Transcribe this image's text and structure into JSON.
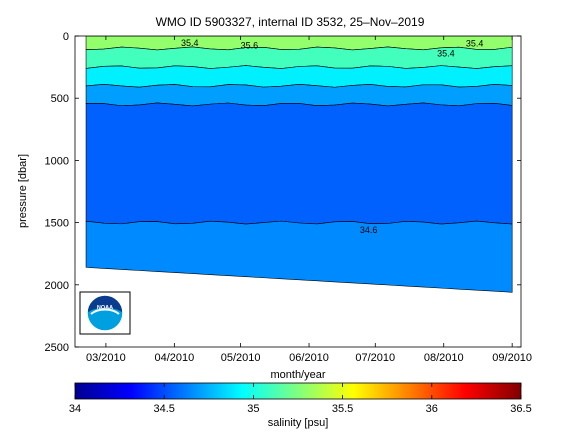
{
  "chart_data": {
    "type": "heatmap",
    "title": "WMO ID 5903327, internal ID 3532, 25–Nov–2019",
    "xlabel": "month/year",
    "ylabel": "pressure [dbar]",
    "x_ticks": [
      "03/2010",
      "04/2010",
      "05/2010",
      "06/2010",
      "07/2010",
      "08/2010",
      "09/2010"
    ],
    "x_range": [
      "2010-02-15",
      "2010-09-05"
    ],
    "y_ticks": [
      0,
      500,
      1000,
      1500,
      2000,
      2500
    ],
    "y_range": [
      0,
      2500
    ],
    "y_reversed": true,
    "colorbar": {
      "label": "salinity [psu]",
      "range": [
        34,
        36.5
      ],
      "ticks": [
        "34",
        "34.5",
        "35",
        "35.5",
        "36",
        "36.5"
      ],
      "colors": [
        "#00008f",
        "#0000ff",
        "#0080ff",
        "#00ffff",
        "#80ff80",
        "#ffff00",
        "#ff8000",
        "#ff0000",
        "#800000"
      ]
    },
    "contour_labels": [
      "35.4",
      "35.6",
      "35.4",
      "35.4",
      "34.6"
    ],
    "profile_depth_dbar": {
      "start": "2010-02-20",
      "end": "2010-09-01",
      "max_pressure_start": 1860,
      "max_pressure_end": 2060
    },
    "salinity_layers": [
      {
        "from_dbar": 0,
        "to_dbar": 100,
        "salinity": 35.3
      },
      {
        "from_dbar": 100,
        "to_dbar": 250,
        "salinity": 35.1
      },
      {
        "from_dbar": 250,
        "to_dbar": 400,
        "salinity": 34.9
      },
      {
        "from_dbar": 400,
        "to_dbar": 550,
        "salinity": 34.7
      },
      {
        "from_dbar": 550,
        "to_dbar": 1500,
        "salinity": 34.55
      },
      {
        "from_dbar": 1500,
        "to_dbar": 2060,
        "salinity": 34.65
      }
    ]
  },
  "logo": {
    "text": "NOAA"
  }
}
